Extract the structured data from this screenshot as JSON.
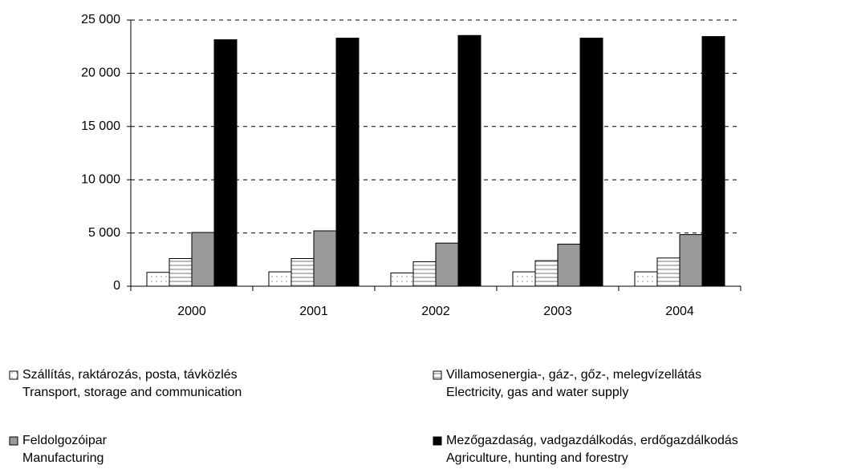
{
  "chart_data": {
    "type": "bar",
    "categories": [
      "2000",
      "2001",
      "2002",
      "2003",
      "2004"
    ],
    "series": [
      {
        "name": [
          "Szállítás, raktározás, posta, távközlés",
          "Transport, storage and communication"
        ],
        "color": "#ffffff",
        "pattern": "dots",
        "values": [
          1300,
          1350,
          1250,
          1350,
          1350
        ]
      },
      {
        "name": [
          "Villamosenergia-, gáz-, gőz-, melegvízellátás",
          "Electricity, gas and water supply"
        ],
        "color": "#ffffff",
        "pattern": "stripes",
        "values": [
          2600,
          2600,
          2300,
          2400,
          2650
        ]
      },
      {
        "name": [
          "Feldolgozóipar",
          "Manufacturing"
        ],
        "color": "#999999",
        "values": [
          5050,
          5200,
          4050,
          3950,
          4850
        ]
      },
      {
        "name": [
          "Mezőgazdaság, vadgazdálkodás, erdőgazdálkodás",
          "Agriculture, hunting and forestry"
        ],
        "color": "#000000",
        "values": [
          23150,
          23300,
          23550,
          23300,
          23450
        ]
      }
    ],
    "ylim": [
      0,
      25000
    ],
    "yticks": [
      0,
      {
        "value": 5000,
        "label": "5 000"
      },
      {
        "value": 10000,
        "label": "10 000"
      },
      {
        "value": 15000,
        "label": "15 000"
      },
      {
        "value": 20000,
        "label": "20 000"
      },
      {
        "value": 25000,
        "label": "25 000"
      }
    ],
    "grid": true,
    "legend": "bottom"
  }
}
